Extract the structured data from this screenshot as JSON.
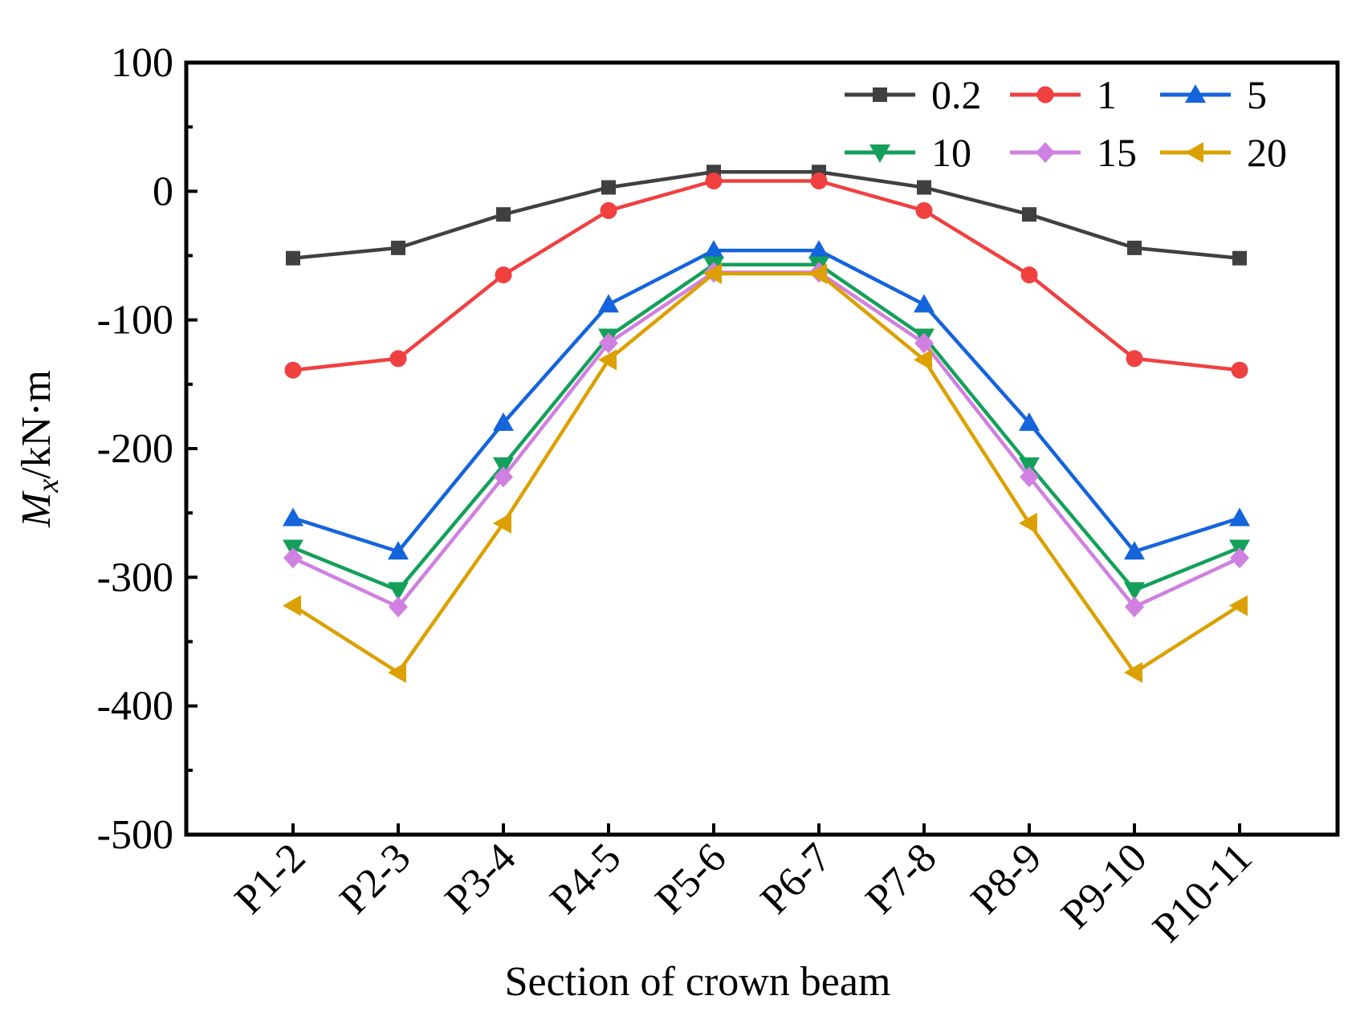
{
  "chart_data": {
    "type": "line",
    "title": "",
    "xlabel": "Section of crown beam",
    "ylabel": {
      "main": "M",
      "sub": "x",
      "unit": "/kN·m"
    },
    "categories": [
      "P1-2",
      "P2-3",
      "P3-4",
      "P4-5",
      "P5-6",
      "P6-7",
      "P7-8",
      "P8-9",
      "P9-10",
      "P10-11"
    ],
    "ylim": [
      -500,
      100
    ],
    "yticks": [
      -500,
      -400,
      -300,
      -200,
      -100,
      0,
      100
    ],
    "ytick_labels": [
      "-500",
      "-400",
      "-300",
      "-200",
      "-100",
      "0",
      "100"
    ],
    "grid": false,
    "legend_position": "top-right",
    "series": [
      {
        "name": "0.2",
        "color": "#404040",
        "marker": "square",
        "values": [
          -52,
          -44,
          -18,
          3,
          15,
          15,
          3,
          -18,
          -44,
          -52
        ]
      },
      {
        "name": "1",
        "color": "#f04040",
        "marker": "circle",
        "values": [
          -139,
          -130,
          -65,
          -15,
          8,
          8,
          -15,
          -65,
          -130,
          -139
        ]
      },
      {
        "name": "5",
        "color": "#1464dc",
        "marker": "triangle-up",
        "values": [
          -254,
          -280,
          -180,
          -88,
          -46,
          -46,
          -88,
          -180,
          -280,
          -254
        ]
      },
      {
        "name": "10",
        "color": "#14a05a",
        "marker": "triangle-down",
        "values": [
          -277,
          -310,
          -213,
          -113,
          -57,
          -57,
          -113,
          -213,
          -310,
          -277
        ]
      },
      {
        "name": "15",
        "color": "#d080e0",
        "marker": "diamond",
        "values": [
          -285,
          -323,
          -222,
          -118,
          -63,
          -63,
          -118,
          -222,
          -323,
          -285
        ]
      },
      {
        "name": "20",
        "color": "#dca000",
        "marker": "triangle-left",
        "values": [
          -322,
          -374,
          -258,
          -131,
          -64,
          -64,
          -131,
          -258,
          -374,
          -322
        ]
      }
    ]
  }
}
